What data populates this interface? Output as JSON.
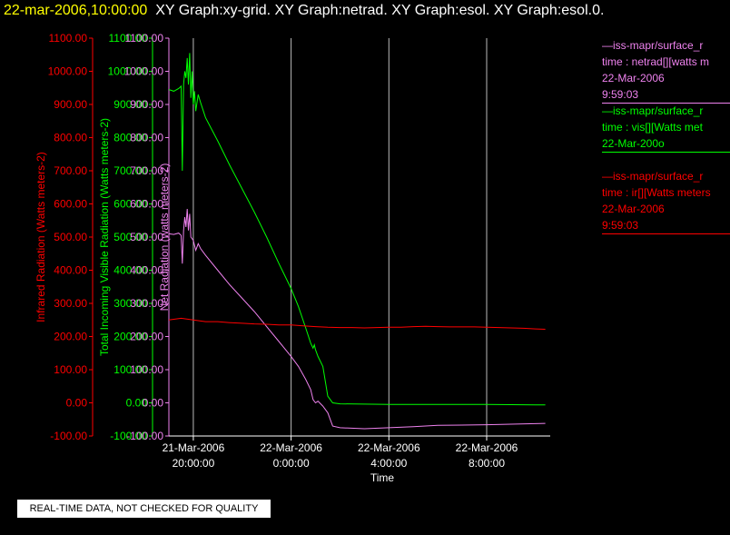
{
  "header": {
    "timestamp": "22-mar-2006,10:00:00",
    "titles": "XY Graph:xy-grid.  XY Graph:netrad.  XY Graph:esol.  XY Graph:esol.0."
  },
  "legend": [
    {
      "lines": [
        "—iss-mapr/surface_r",
        "time : netrad[][watts m",
        "22-Mar-2006",
        "9:59:03"
      ],
      "color": "#ee82ee"
    },
    {
      "lines": [
        "—iss-mapr/surface_r",
        "time : vis[][Watts met",
        "22-Mar-200o"
      ],
      "color": "#00ff00"
    },
    {
      "lines": [
        "—iss-mapr/surface_r",
        "time : ir[][Watts meters",
        "22-Mar-2006",
        "9:59:03"
      ],
      "color": "#ff0000"
    }
  ],
  "disclaimer": "REAL-TIME DATA, NOT CHECKED FOR QUALITY",
  "chart_data": {
    "type": "line",
    "xlabel": "Time",
    "x_range_hours": [
      19.0,
      34.6
    ],
    "x_ticks": [
      {
        "hour": 20,
        "line1": "21-Mar-2006",
        "line2": "20:00:00"
      },
      {
        "hour": 24,
        "line1": "22-Mar-2006",
        "line2": "0:00:00"
      },
      {
        "hour": 28,
        "line1": "22-Mar-2006",
        "line2": "4:00:00"
      },
      {
        "hour": 32,
        "line1": "22-Mar-2006",
        "line2": "8:00:00"
      }
    ],
    "y_axes": [
      {
        "label": "Infrared Radiation (Watts meters-2)",
        "color": "#ff0000",
        "ylim": [
          -100,
          1100
        ]
      },
      {
        "label": "Total Incoming Visible Radiation (Watts meters-2)",
        "color": "#00ff00",
        "ylim": [
          -100,
          1100
        ]
      },
      {
        "label": "Net Radiation (watts meters-2)",
        "color": "#ee82ee",
        "ylim": [
          -100,
          1100
        ]
      }
    ],
    "y_ticks": [
      "1100.00",
      "1000.00",
      "900.00",
      "800.00",
      "700.00",
      "600.00",
      "500.00",
      "400.00",
      "300.00",
      "200.00",
      "100.00",
      "0.00",
      "-100.00"
    ],
    "grid": "vertical lines at x ticks",
    "series": [
      {
        "name": "vis",
        "color": "#00ff00",
        "points": [
          [
            19.0,
            945
          ],
          [
            19.2,
            940
          ],
          [
            19.4,
            948
          ],
          [
            19.5,
            955
          ],
          [
            19.55,
            700
          ],
          [
            19.6,
            960
          ],
          [
            19.65,
            1000
          ],
          [
            19.7,
            980
          ],
          [
            19.75,
            1040
          ],
          [
            19.8,
            960
          ],
          [
            19.85,
            1055
          ],
          [
            19.9,
            920
          ],
          [
            19.95,
            1000
          ],
          [
            20.0,
            900
          ],
          [
            20.05,
            940
          ],
          [
            20.1,
            880
          ],
          [
            20.2,
            930
          ],
          [
            20.3,
            905
          ],
          [
            20.5,
            860
          ],
          [
            21.0,
            790
          ],
          [
            21.5,
            715
          ],
          [
            22.0,
            645
          ],
          [
            22.5,
            575
          ],
          [
            23.0,
            500
          ],
          [
            23.5,
            420
          ],
          [
            24.0,
            345
          ],
          [
            24.3,
            290
          ],
          [
            24.6,
            225
          ],
          [
            24.8,
            180
          ],
          [
            24.9,
            165
          ],
          [
            24.95,
            175
          ],
          [
            25.0,
            160
          ],
          [
            25.1,
            140
          ],
          [
            25.3,
            110
          ],
          [
            25.5,
            20
          ],
          [
            25.7,
            0
          ],
          [
            26.0,
            -3
          ],
          [
            28.0,
            -5
          ],
          [
            30.0,
            -5
          ],
          [
            32.0,
            -5
          ],
          [
            34.0,
            -6
          ],
          [
            34.4,
            -6
          ]
        ]
      },
      {
        "name": "netrad",
        "color": "#ee82ee",
        "points": [
          [
            19.0,
            510
          ],
          [
            19.2,
            508
          ],
          [
            19.4,
            512
          ],
          [
            19.5,
            505
          ],
          [
            19.55,
            420
          ],
          [
            19.6,
            520
          ],
          [
            19.65,
            560
          ],
          [
            19.7,
            530
          ],
          [
            19.75,
            585
          ],
          [
            19.8,
            520
          ],
          [
            19.85,
            570
          ],
          [
            19.9,
            500
          ],
          [
            20.0,
            490
          ],
          [
            20.1,
            460
          ],
          [
            20.2,
            480
          ],
          [
            20.3,
            465
          ],
          [
            20.5,
            445
          ],
          [
            21.0,
            400
          ],
          [
            21.5,
            355
          ],
          [
            22.0,
            315
          ],
          [
            22.5,
            275
          ],
          [
            23.0,
            230
          ],
          [
            23.5,
            185
          ],
          [
            24.0,
            140
          ],
          [
            24.3,
            110
          ],
          [
            24.6,
            70
          ],
          [
            24.8,
            40
          ],
          [
            24.9,
            10
          ],
          [
            25.0,
            0
          ],
          [
            25.1,
            5
          ],
          [
            25.3,
            -10
          ],
          [
            25.5,
            -30
          ],
          [
            25.7,
            -70
          ],
          [
            26.0,
            -75
          ],
          [
            27.0,
            -78
          ],
          [
            28.0,
            -75
          ],
          [
            29.0,
            -72
          ],
          [
            30.0,
            -68
          ],
          [
            32.0,
            -66
          ],
          [
            34.4,
            -62
          ]
        ]
      },
      {
        "name": "ir",
        "color": "#ff0000",
        "points": [
          [
            19.0,
            250
          ],
          [
            19.5,
            255
          ],
          [
            20.0,
            250
          ],
          [
            20.5,
            245
          ],
          [
            21.0,
            245
          ],
          [
            21.5,
            242
          ],
          [
            22.0,
            240
          ],
          [
            22.5,
            238
          ],
          [
            23.0,
            237
          ],
          [
            23.5,
            235
          ],
          [
            24.0,
            235
          ],
          [
            24.5,
            232
          ],
          [
            25.0,
            230
          ],
          [
            25.5,
            228
          ],
          [
            26.0,
            227
          ],
          [
            26.5,
            227
          ],
          [
            27.0,
            226
          ],
          [
            27.5,
            227
          ],
          [
            28.0,
            228
          ],
          [
            28.5,
            228
          ],
          [
            29.0,
            230
          ],
          [
            29.5,
            231
          ],
          [
            30.0,
            230
          ],
          [
            30.5,
            229
          ],
          [
            31.0,
            229
          ],
          [
            31.5,
            229
          ],
          [
            32.0,
            228
          ],
          [
            32.5,
            227
          ],
          [
            33.0,
            226
          ],
          [
            33.5,
            225
          ],
          [
            34.0,
            223
          ],
          [
            34.4,
            222
          ]
        ]
      }
    ]
  }
}
